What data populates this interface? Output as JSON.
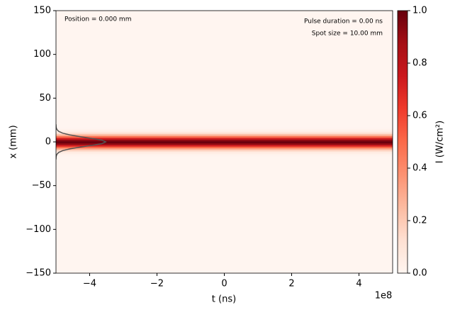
{
  "chart_data": {
    "type": "heatmap",
    "xlabel": "t (ns)",
    "ylabel": "x (mm)",
    "x_offset_label": "1e8",
    "annotations": [
      "Position = 0.000 mm",
      "Pulse duration = 0.00 ns",
      "Spot size = 10.00 mm"
    ],
    "xlim": [
      -500000000,
      500000000
    ],
    "xticks": [
      {
        "value": -400000000,
        "label": "−4"
      },
      {
        "value": -200000000,
        "label": "−2"
      },
      0,
      {
        "value": 200000000,
        "label": "2"
      },
      {
        "value": 400000000,
        "label": "4"
      }
    ],
    "ylim": [
      -150,
      150
    ],
    "yticks": [
      {
        "value": -150,
        "label": "−150"
      },
      {
        "value": -100,
        "label": "−100"
      },
      {
        "value": -50,
        "label": "−50"
      },
      0,
      50,
      100,
      150
    ],
    "x": [
      -20,
      -18,
      -16,
      -14,
      -12,
      -10,
      -8,
      -6,
      -4,
      -2,
      0,
      2,
      4,
      6,
      8,
      10,
      12,
      14,
      16,
      18,
      20
    ],
    "values": [
      0,
      0.002,
      0.006,
      0.02,
      0.056,
      0.135,
      0.278,
      0.487,
      0.726,
      0.923,
      1,
      0.923,
      0.726,
      0.487,
      0.278,
      0.135,
      0.056,
      0.02,
      0.006,
      0.002,
      0
    ],
    "profile_color": "#555555",
    "colorbar": {
      "label": "I (W/cm²)",
      "lim": [
        0,
        1
      ],
      "ticks": [
        {
          "value": 0,
          "label": "0.0"
        },
        {
          "value": 0.2,
          "label": "0.2"
        },
        {
          "value": 0.4,
          "label": "0.4"
        },
        {
          "value": 0.6,
          "label": "0.6"
        },
        {
          "value": 0.8,
          "label": "0.8"
        },
        {
          "value": 1,
          "label": "1.0"
        }
      ],
      "colormap": [
        "#fff5f0",
        "#fee0d2",
        "#fcbba1",
        "#fc9272",
        "#fb6a4a",
        "#ef3b2c",
        "#cb181d",
        "#a50f15",
        "#67000d"
      ]
    }
  }
}
